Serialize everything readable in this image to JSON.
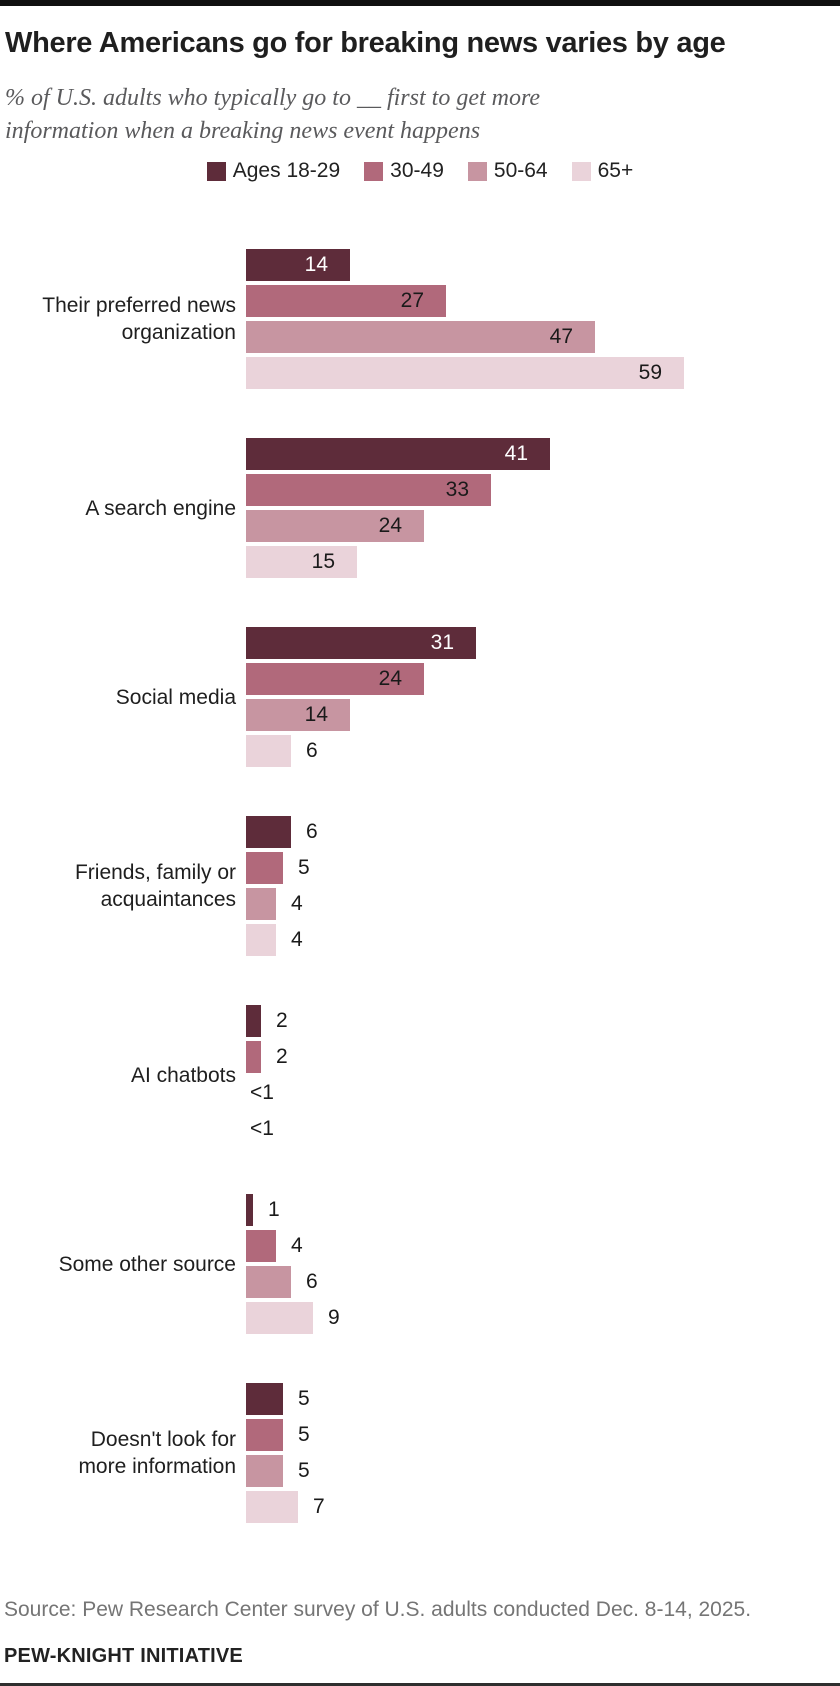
{
  "header": {
    "title": "Where Americans go for breaking news varies by age",
    "subtitle": "% of U.S. adults who typically go to __ first to get more\ninformation when a breaking news event happens"
  },
  "legend": {
    "items": [
      {
        "label": "Ages 18-29",
        "color": "#5e2c3a"
      },
      {
        "label": "30-49",
        "color": "#b1697b"
      },
      {
        "label": "50-64",
        "color": "#c795a1"
      },
      {
        "label": "65+",
        "color": "#ead3da"
      }
    ]
  },
  "chart_data": {
    "type": "bar",
    "orientation": "horizontal",
    "value_unit": "%",
    "xlim": [
      0,
      59
    ],
    "grid": false,
    "legend_position": "top-center",
    "series_names": [
      "Ages 18-29",
      "30-49",
      "50-64",
      "65+"
    ],
    "series_colors": [
      "#5e2c3a",
      "#b1697b",
      "#c795a1",
      "#ead3da"
    ],
    "value_label_dark_series_text_color": "#ffffff",
    "value_label_text_color": "#1a1a1a",
    "categories": [
      {
        "label": "Their preferred news\norganization",
        "values": [
          14,
          27,
          47,
          59
        ],
        "display": [
          "14",
          "27",
          "47",
          "59"
        ]
      },
      {
        "label": "A search engine",
        "values": [
          41,
          33,
          24,
          15
        ],
        "display": [
          "41",
          "33",
          "24",
          "15"
        ]
      },
      {
        "label": "Social media",
        "values": [
          31,
          24,
          14,
          6
        ],
        "display": [
          "31",
          "24",
          "14",
          "6"
        ]
      },
      {
        "label": "Friends, family or\nacquaintances",
        "values": [
          6,
          5,
          4,
          4
        ],
        "display": [
          "6",
          "5",
          "4",
          "4"
        ]
      },
      {
        "label": "AI chatbots",
        "values": [
          2,
          2,
          0.4,
          0.4
        ],
        "display": [
          "2",
          "2",
          "<1",
          "<1"
        ]
      },
      {
        "label": "Some other source",
        "values": [
          1,
          4,
          6,
          9
        ],
        "display": [
          "1",
          "4",
          "6",
          "9"
        ]
      },
      {
        "label": "Doesn't look for\nmore information",
        "values": [
          5,
          5,
          5,
          7
        ],
        "display": [
          "5",
          "5",
          "5",
          "7"
        ]
      }
    ]
  },
  "footer": {
    "source": "Source: Pew Research Center survey of U.S. adults conducted Dec. 8-14, 2025.",
    "brand": "PEW-KNIGHT INITIATIVE"
  }
}
